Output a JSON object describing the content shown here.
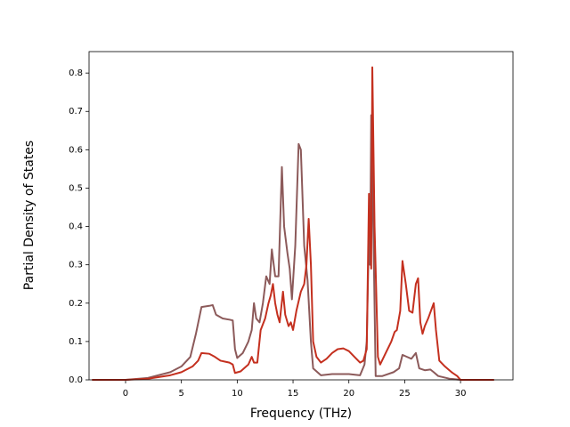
{
  "chart_data": {
    "type": "line",
    "x_label": "Frequency (THz)",
    "y_label": "Partial Density of States",
    "xlim": [
      -3.27,
      34.7
    ],
    "ylim": [
      0,
      0.856
    ],
    "xticks": [
      0,
      5,
      10,
      15,
      20,
      25,
      30
    ],
    "yticks": [
      {
        "value": 0,
        "label": "0.0"
      },
      0.1,
      0.2,
      0.3,
      0.4,
      0.5,
      0.6,
      0.7,
      0.8
    ],
    "series": [
      {
        "color": "#8c5a5a",
        "x": [
          -3,
          0,
          2,
          4,
          5,
          5.8,
          6.3,
          6.8,
          7.5,
          7.8,
          8.1,
          8.7,
          9.3,
          9.6,
          9.8,
          10,
          10.5,
          11,
          11.3,
          11.5,
          11.7,
          12.0,
          12.3,
          12.6,
          12.9,
          13.1,
          13.4,
          13.7,
          14.0,
          14.2,
          14.5,
          14.7,
          14.9,
          15.2,
          15.5,
          15.7,
          16.0,
          16.3,
          16.6,
          16.8,
          17.5,
          18.5,
          20,
          21,
          21.4,
          21.6,
          21.8,
          21.9,
          22.0,
          22.2,
          22.4,
          23,
          24,
          24.5,
          24.8,
          25.2,
          25.6,
          26.0,
          26.3,
          26.8,
          27.3,
          27.6,
          28,
          29,
          30,
          33
        ],
        "values": [
          0,
          0,
          0.005,
          0.02,
          0.035,
          0.06,
          0.12,
          0.19,
          0.193,
          0.195,
          0.17,
          0.16,
          0.157,
          0.155,
          0.08,
          0.057,
          0.07,
          0.1,
          0.13,
          0.2,
          0.16,
          0.15,
          0.2,
          0.27,
          0.25,
          0.34,
          0.27,
          0.27,
          0.555,
          0.4,
          0.33,
          0.29,
          0.21,
          0.35,
          0.615,
          0.6,
          0.35,
          0.26,
          0.1,
          0.03,
          0.012,
          0.015,
          0.015,
          0.012,
          0.04,
          0.1,
          0.385,
          0.3,
          0.69,
          0.38,
          0.01,
          0.01,
          0.02,
          0.03,
          0.065,
          0.06,
          0.055,
          0.07,
          0.03,
          0.025,
          0.027,
          0.02,
          0.01,
          0.003,
          0,
          0
        ]
      },
      {
        "color": "#c4301f",
        "x": [
          -3,
          0,
          2,
          4,
          5,
          6,
          6.5,
          6.8,
          7.5,
          8,
          8.5,
          9.3,
          9.6,
          9.8,
          10.3,
          11,
          11.3,
          11.5,
          11.8,
          12.1,
          12.5,
          12.8,
          13.0,
          13.2,
          13.4,
          13.6,
          13.8,
          14.1,
          14.3,
          14.6,
          14.8,
          15.0,
          15.3,
          15.7,
          16.0,
          16.2,
          16.4,
          16.6,
          16.8,
          17.1,
          17.5,
          18.0,
          18.5,
          19,
          19.5,
          20,
          20.5,
          21,
          21.3,
          21.6,
          21.8,
          22.0,
          22.1,
          22.3,
          22.6,
          22.8,
          23.3,
          23.8,
          24.1,
          24.3,
          24.6,
          24.8,
          25.1,
          25.4,
          25.7,
          26.0,
          26.2,
          26.4,
          26.6,
          26.8,
          27.1,
          27.6,
          27.8,
          28.1,
          28.6,
          29.2,
          29.7,
          30,
          33
        ],
        "values": [
          0,
          0,
          0.003,
          0.012,
          0.02,
          0.035,
          0.05,
          0.07,
          0.068,
          0.06,
          0.05,
          0.045,
          0.04,
          0.018,
          0.022,
          0.04,
          0.06,
          0.045,
          0.045,
          0.13,
          0.16,
          0.2,
          0.22,
          0.25,
          0.2,
          0.17,
          0.15,
          0.23,
          0.17,
          0.14,
          0.15,
          0.13,
          0.18,
          0.23,
          0.25,
          0.3,
          0.42,
          0.3,
          0.1,
          0.06,
          0.045,
          0.055,
          0.07,
          0.08,
          0.082,
          0.075,
          0.06,
          0.045,
          0.05,
          0.08,
          0.485,
          0.29,
          0.815,
          0.4,
          0.06,
          0.04,
          0.07,
          0.1,
          0.125,
          0.13,
          0.18,
          0.31,
          0.25,
          0.18,
          0.175,
          0.25,
          0.265,
          0.15,
          0.12,
          0.14,
          0.16,
          0.2,
          0.13,
          0.05,
          0.035,
          0.02,
          0.01,
          0,
          0
        ]
      }
    ]
  }
}
